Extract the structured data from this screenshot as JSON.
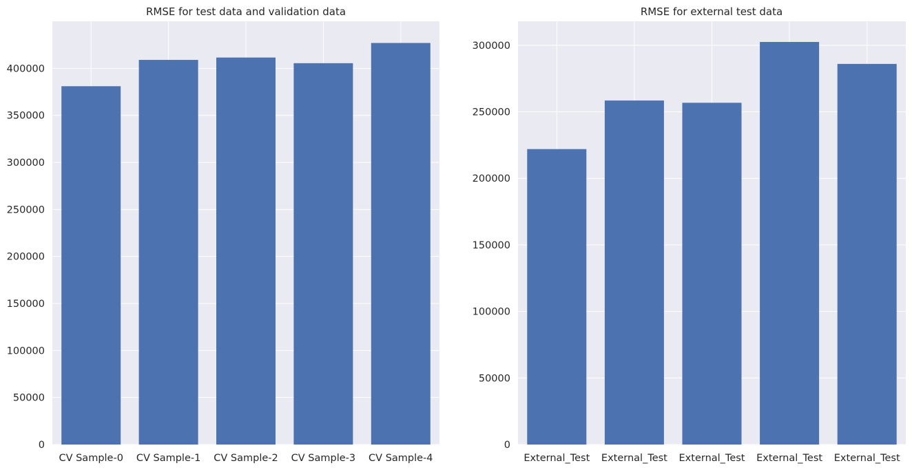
{
  "chart_data": [
    {
      "type": "bar",
      "title": "RMSE for test data and validation data",
      "xlabel": "",
      "ylabel": "",
      "categories": [
        "CV Sample-0",
        "CV Sample-1",
        "CV Sample-2",
        "CV Sample-3",
        "CV Sample-4"
      ],
      "values": [
        381000,
        409000,
        411500,
        405500,
        427000
      ],
      "ylim": [
        0,
        450000
      ],
      "yticks": [
        0,
        50000,
        100000,
        150000,
        200000,
        250000,
        300000,
        350000,
        400000
      ],
      "ytick_labels": [
        "0",
        "50000",
        "100000",
        "150000",
        "200000",
        "250000",
        "300000",
        "350000",
        "400000"
      ],
      "grid": true,
      "bar_color": "#4c72b0",
      "background_color": "#eaeaf2"
    },
    {
      "type": "bar",
      "title": "RMSE for external test data",
      "xlabel": "",
      "ylabel": "",
      "categories": [
        "External_Test",
        "External_Test",
        "External_Test",
        "External_Test",
        "External_Test"
      ],
      "values": [
        222000,
        258500,
        256800,
        302500,
        286000
      ],
      "ylim": [
        0,
        318000
      ],
      "yticks": [
        0,
        50000,
        100000,
        150000,
        200000,
        250000,
        300000
      ],
      "ytick_labels": [
        "0",
        "50000",
        "100000",
        "150000",
        "200000",
        "250000",
        "300000"
      ],
      "grid": true,
      "bar_color": "#4c72b0",
      "background_color": "#eaeaf2"
    }
  ]
}
